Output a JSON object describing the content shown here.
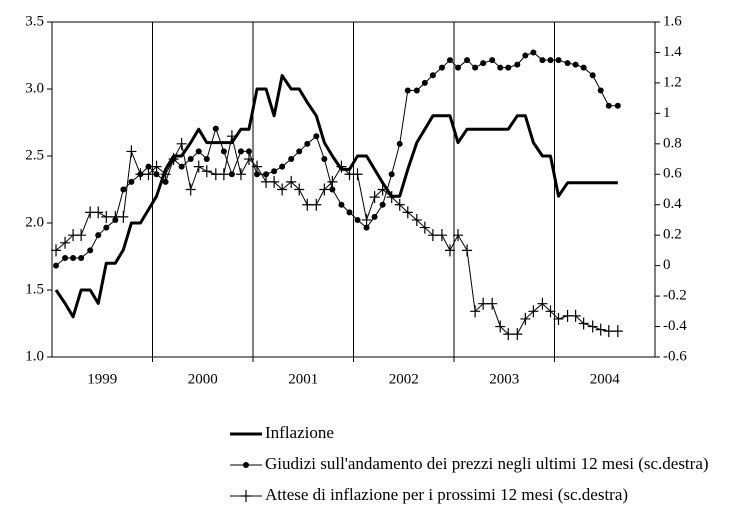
{
  "chart_data": {
    "type": "line",
    "x": [
      1999.04,
      1999.13,
      1999.21,
      1999.29,
      1999.38,
      1999.46,
      1999.54,
      1999.63,
      1999.71,
      1999.79,
      1999.88,
      1999.96,
      2000.04,
      2000.13,
      2000.21,
      2000.29,
      2000.38,
      2000.46,
      2000.54,
      2000.63,
      2000.71,
      2000.79,
      2000.88,
      2000.96,
      2001.04,
      2001.13,
      2001.21,
      2001.29,
      2001.38,
      2001.46,
      2001.54,
      2001.63,
      2001.71,
      2001.79,
      2001.88,
      2001.96,
      2002.04,
      2002.13,
      2002.21,
      2002.29,
      2002.38,
      2002.46,
      2002.54,
      2002.63,
      2002.71,
      2002.79,
      2002.88,
      2002.96,
      2003.04,
      2003.13,
      2003.21,
      2003.29,
      2003.38,
      2003.46,
      2003.54,
      2003.63,
      2003.71,
      2003.79,
      2003.88,
      2003.96,
      2004.04,
      2004.13,
      2004.21,
      2004.29,
      2004.38,
      2004.46,
      2004.54,
      2004.63
    ],
    "xlim": [
      1999,
      2005
    ],
    "xticks": [
      {
        "value": 1999.5,
        "label": "1999"
      },
      {
        "value": 2000.5,
        "label": "2000"
      },
      {
        "value": 2001.5,
        "label": "2001"
      },
      {
        "value": 2002.5,
        "label": "2002"
      },
      {
        "value": 2003.5,
        "label": "2003"
      },
      {
        "value": 2004.5,
        "label": "2004"
      }
    ],
    "xgrid": [
      2000,
      2001,
      2002,
      2003,
      2004
    ],
    "ylim": [
      1,
      3.5
    ],
    "yticks": [
      {
        "value": 1,
        "label": "1.0"
      },
      1.5,
      {
        "value": 2,
        "label": "2.0"
      },
      2.5,
      {
        "value": 3,
        "label": "3.0"
      },
      3.5
    ],
    "y2lim": [
      -0.6,
      1.6
    ],
    "y2ticks": [
      -0.6,
      -0.4,
      -0.2,
      0,
      0.2,
      0.4,
      0.6,
      0.8,
      1,
      1.2,
      1.4,
      1.6
    ],
    "series": [
      {
        "name": "Inflazione",
        "color": "#000000",
        "marker": "none",
        "values": [
          1.5,
          1.4,
          1.3,
          1.5,
          1.5,
          1.4,
          1.7,
          1.7,
          1.8,
          2.0,
          2.0,
          2.1,
          2.2,
          2.4,
          2.5,
          2.5,
          2.6,
          2.7,
          2.6,
          2.6,
          2.6,
          2.6,
          2.7,
          2.7,
          3.0,
          3.0,
          2.8,
          3.1,
          3.0,
          3.0,
          2.9,
          2.8,
          2.6,
          2.5,
          2.4,
          2.4,
          2.5,
          2.5,
          2.4,
          2.3,
          2.2,
          2.2,
          2.4,
          2.6,
          2.7,
          2.8,
          2.8,
          2.8,
          2.6,
          2.7,
          2.7,
          2.7,
          2.7,
          2.7,
          2.7,
          2.8,
          2.8,
          2.6,
          2.5,
          2.5,
          2.2,
          2.3,
          2.3,
          2.3,
          2.3,
          2.3,
          2.3,
          2.3
        ]
      },
      {
        "name": "Giudizi sull'andamento dei prezzi negli ultimi 12 mesi (sc.destra)",
        "color": "#000000",
        "marker": "circle",
        "axis": "y2",
        "values": [
          0.0,
          0.05,
          0.05,
          0.05,
          0.1,
          0.2,
          0.25,
          0.3,
          0.5,
          0.55,
          0.6,
          0.65,
          0.6,
          0.55,
          0.7,
          0.65,
          0.7,
          0.75,
          0.7,
          0.9,
          0.75,
          0.6,
          0.75,
          0.75,
          0.6,
          0.6,
          0.62,
          0.65,
          0.7,
          0.75,
          0.8,
          0.85,
          0.7,
          0.5,
          0.4,
          0.35,
          0.3,
          0.25,
          0.32,
          0.4,
          0.6,
          0.8,
          1.15,
          1.15,
          1.2,
          1.25,
          1.3,
          1.35,
          1.3,
          1.35,
          1.3,
          1.33,
          1.35,
          1.3,
          1.3,
          1.32,
          1.38,
          1.4,
          1.35,
          1.35,
          1.35,
          1.33,
          1.32,
          1.3,
          1.25,
          1.15,
          1.05,
          1.05
        ]
      },
      {
        "name": "Attese di inflazione per i prossimi 12 mesi (sc.destra)",
        "color": "#000000",
        "marker": "plus",
        "axis": "y2",
        "values": [
          0.1,
          0.15,
          0.2,
          0.2,
          0.35,
          0.35,
          0.32,
          0.32,
          0.32,
          0.75,
          0.6,
          0.6,
          0.65,
          0.6,
          0.7,
          0.8,
          0.5,
          0.65,
          0.62,
          0.6,
          0.6,
          0.85,
          0.6,
          0.7,
          0.65,
          0.55,
          0.55,
          0.5,
          0.55,
          0.5,
          0.4,
          0.4,
          0.5,
          0.55,
          0.65,
          0.6,
          0.6,
          0.3,
          0.45,
          0.5,
          0.45,
          0.4,
          0.35,
          0.3,
          0.25,
          0.2,
          0.2,
          0.1,
          0.2,
          0.1,
          -0.3,
          -0.25,
          -0.25,
          -0.4,
          -0.45,
          -0.45,
          -0.35,
          -0.3,
          -0.25,
          -0.3,
          -0.35,
          -0.33,
          -0.33,
          -0.38,
          -0.4,
          -0.42,
          -0.43,
          -0.43
        ]
      }
    ]
  }
}
